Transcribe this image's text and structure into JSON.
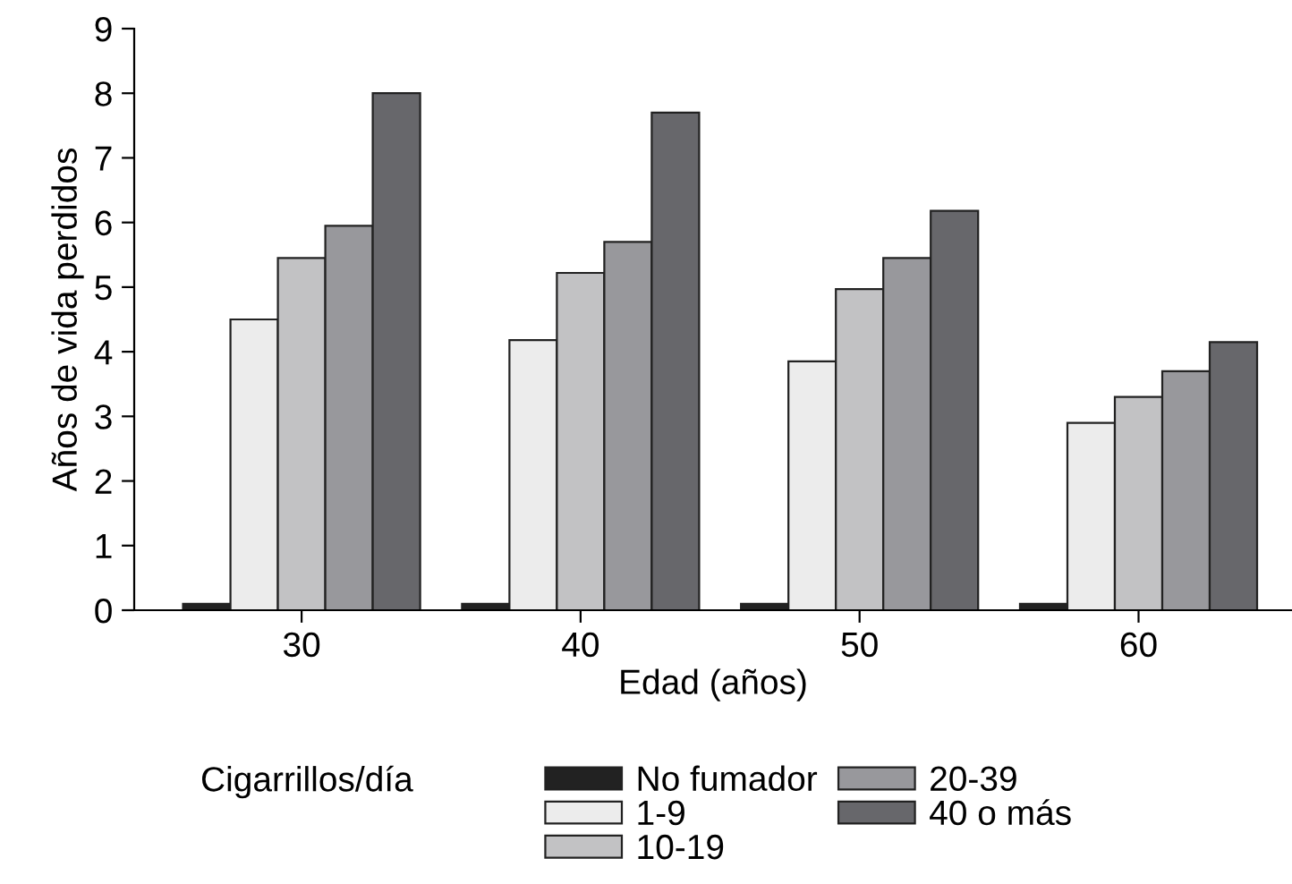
{
  "chart_data": {
    "type": "bar",
    "xlabel": "Edad (años)",
    "ylabel": "Años de vida perdidos",
    "legend_title": "Cigarrillos/día",
    "categories": [
      "30",
      "40",
      "50",
      "60"
    ],
    "series": [
      {
        "name": "No fumador",
        "color": "#222222",
        "values": [
          0.1,
          0.1,
          0.1,
          0.1
        ]
      },
      {
        "name": "1-9",
        "color": "#ececec",
        "values": [
          4.5,
          4.18,
          3.85,
          2.9
        ]
      },
      {
        "name": "10-19",
        "color": "#c2c2c4",
        "values": [
          5.45,
          5.22,
          4.97,
          3.3
        ]
      },
      {
        "name": "20-39",
        "color": "#98989c",
        "values": [
          5.95,
          5.7,
          5.45,
          3.7
        ]
      },
      {
        "name": "40 o más",
        "color": "#67676b",
        "values": [
          8.0,
          7.7,
          6.18,
          4.15
        ]
      }
    ],
    "ylim": [
      0,
      9
    ],
    "yticks": [
      0,
      1,
      2,
      3,
      4,
      5,
      6,
      7,
      8,
      9
    ],
    "grid": false,
    "legend": "bottom"
  }
}
